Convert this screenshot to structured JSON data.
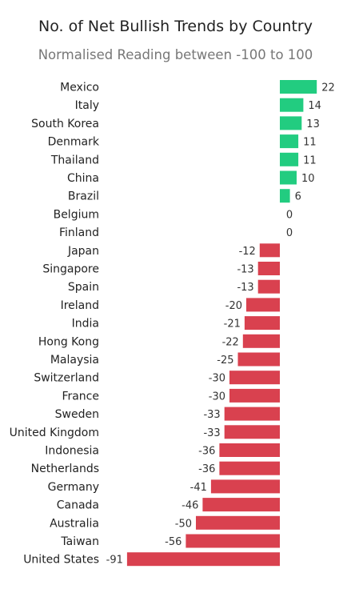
{
  "chart_data": {
    "type": "bar",
    "orientation": "horizontal",
    "title": "No. of Net Bullish Trends by Country",
    "subtitle": "Normalised Reading between -100 to 100",
    "xlabel": "",
    "ylabel": "",
    "categories": [
      "Mexico",
      "Italy",
      "South Korea",
      "Denmark",
      "Thailand",
      "China",
      "Brazil",
      "Belgium",
      "Finland",
      "Japan",
      "Singapore",
      "Spain",
      "Ireland",
      "India",
      "Hong Kong",
      "Malaysia",
      "Switzerland",
      "France",
      "Sweden",
      "United Kingdom",
      "Indonesia",
      "Netherlands",
      "Germany",
      "Canada",
      "Australia",
      "Taiwan",
      "United States"
    ],
    "values": [
      22,
      14,
      13,
      11,
      11,
      10,
      6,
      0,
      0,
      -12,
      -13,
      -13,
      -20,
      -21,
      -22,
      -25,
      -30,
      -30,
      -33,
      -33,
      -36,
      -36,
      -41,
      -46,
      -50,
      -56,
      -91
    ],
    "colors": {
      "positive": "#22cc80",
      "negative": "#d9414f"
    },
    "grid": false,
    "legend": "none"
  }
}
